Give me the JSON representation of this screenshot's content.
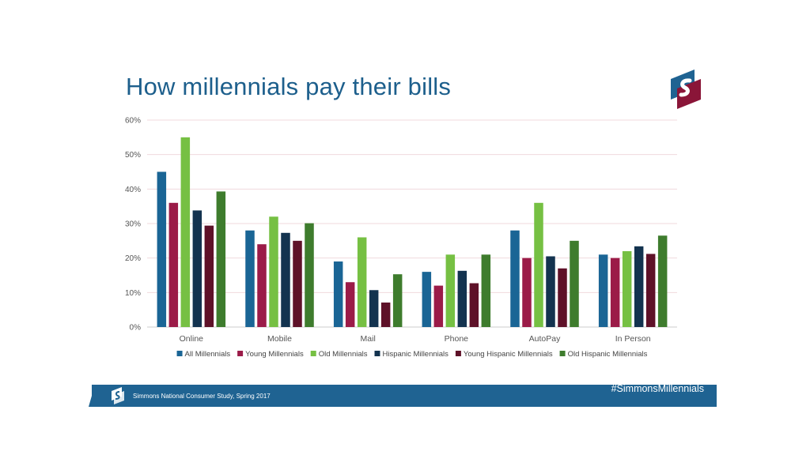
{
  "slide": {
    "title": "How millennials pay their bills",
    "logo_icon": "simmons-s-logo-icon"
  },
  "footer": {
    "source": "Simmons National Consumer Study, Spring 2017",
    "hashtag": "#SimmonsMillennials",
    "bar_color": "#1f6392"
  },
  "colors": {
    "title": "#1d5f8c",
    "axis_text": "#555555",
    "gridline": "#f0d9dd",
    "logo_blue": "#1f6392",
    "logo_maroon": "#8a1538"
  },
  "chart_data": {
    "type": "bar",
    "title": "",
    "xlabel": "",
    "ylabel": "",
    "ylim": [
      0,
      60
    ],
    "y_ticks": [
      "0%",
      "10%",
      "20%",
      "30%",
      "40%",
      "50%",
      "60%"
    ],
    "grid": true,
    "legend_position": "bottom",
    "categories": [
      "Online",
      "Mobile",
      "Mail",
      "Phone",
      "AutoPay",
      "In Person"
    ],
    "series": [
      {
        "name": "All Millennials",
        "color": "#1a6595",
        "values": [
          45,
          28,
          19,
          16,
          28,
          21
        ]
      },
      {
        "name": "Young Millennials",
        "color": "#9b1b48",
        "values": [
          36,
          24,
          13,
          12,
          20,
          20
        ]
      },
      {
        "name": "Old Millennials",
        "color": "#76c043",
        "values": [
          55,
          32,
          26,
          21,
          36,
          22
        ]
      },
      {
        "name": "Hispanic Millennials",
        "color": "#13334f",
        "values": [
          33.8,
          27.3,
          10.7,
          16.3,
          20.5,
          23.4
        ]
      },
      {
        "name": "Young Hispanic Millennials",
        "color": "#5e1128",
        "values": [
          29.4,
          25,
          7.1,
          12.7,
          17,
          21.2
        ]
      },
      {
        "name": "Old Hispanic Millennials",
        "color": "#3e7c2d",
        "values": [
          39.3,
          30.1,
          15.3,
          21,
          25,
          26.5
        ]
      }
    ]
  }
}
